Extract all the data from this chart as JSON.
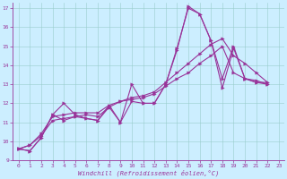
{
  "xlabel": "Windchill (Refroidissement éolien,°C)",
  "background_color": "#cceeff",
  "line_color": "#993399",
  "grid_color": "#99cccc",
  "xlim": [
    -0.5,
    23.5
  ],
  "ylim": [
    9,
    17.3
  ],
  "xticks": [
    0,
    1,
    2,
    3,
    4,
    5,
    6,
    7,
    8,
    9,
    10,
    11,
    12,
    13,
    14,
    15,
    16,
    17,
    18,
    19,
    20,
    21,
    22,
    23
  ],
  "yticks": [
    9,
    10,
    11,
    12,
    13,
    14,
    15,
    16,
    17
  ],
  "series1_x": [
    0,
    1,
    2,
    3,
    4,
    5,
    6,
    7,
    8,
    9,
    10,
    11,
    12,
    13,
    14,
    15,
    16,
    17,
    18,
    19,
    20,
    21,
    22
  ],
  "series1_y": [
    9.6,
    9.5,
    10.2,
    11.4,
    12.0,
    11.4,
    11.2,
    11.1,
    11.8,
    11.0,
    13.0,
    12.0,
    12.0,
    13.0,
    14.9,
    17.0,
    16.7,
    15.3,
    13.3,
    15.0,
    13.3,
    13.2,
    13.0
  ],
  "series2_x": [
    0,
    1,
    2,
    3,
    4,
    5,
    6,
    7,
    8,
    9,
    10,
    11,
    12,
    13,
    14,
    15,
    16,
    17,
    18,
    19,
    20,
    21,
    22
  ],
  "series2_y": [
    9.6,
    9.5,
    10.2,
    11.4,
    11.1,
    11.3,
    11.2,
    11.1,
    11.9,
    11.0,
    12.1,
    12.0,
    12.0,
    13.0,
    14.8,
    17.1,
    16.7,
    15.3,
    12.8,
    14.9,
    13.3,
    13.1,
    13.0
  ],
  "series3_x": [
    0,
    1,
    2,
    3,
    4,
    5,
    6,
    7,
    8,
    9,
    10,
    11,
    12,
    13,
    14,
    15,
    16,
    17,
    18,
    19,
    20,
    21,
    22
  ],
  "series3_y": [
    9.6,
    9.8,
    10.4,
    11.3,
    11.4,
    11.5,
    11.5,
    11.5,
    11.9,
    12.1,
    12.3,
    12.4,
    12.6,
    13.1,
    13.6,
    14.1,
    14.6,
    15.1,
    15.4,
    14.5,
    14.1,
    13.6,
    13.1
  ],
  "series4_x": [
    0,
    1,
    2,
    3,
    4,
    5,
    6,
    7,
    8,
    9,
    10,
    11,
    12,
    13,
    14,
    15,
    16,
    17,
    18,
    19,
    20,
    21,
    22
  ],
  "series4_y": [
    9.6,
    9.8,
    10.3,
    11.1,
    11.2,
    11.3,
    11.4,
    11.3,
    11.8,
    12.1,
    12.2,
    12.3,
    12.5,
    12.9,
    13.3,
    13.6,
    14.1,
    14.5,
    15.0,
    13.6,
    13.3,
    13.1,
    13.1
  ]
}
